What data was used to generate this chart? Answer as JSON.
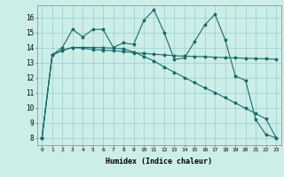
{
  "xlabel": "Humidex (Indice chaleur)",
  "bg_color": "#cceee8",
  "line_color": "#1a6b6b",
  "grid_color": "#99cccc",
  "xlim": [
    -0.5,
    23.5
  ],
  "ylim": [
    7.5,
    16.8
  ],
  "yticks": [
    8,
    9,
    10,
    11,
    12,
    13,
    14,
    15,
    16
  ],
  "xticks": [
    0,
    1,
    2,
    3,
    4,
    5,
    6,
    7,
    8,
    9,
    10,
    11,
    12,
    13,
    14,
    15,
    16,
    17,
    18,
    19,
    20,
    21,
    22,
    23
  ],
  "series1_x": [
    0,
    1,
    2,
    3,
    4,
    5,
    6,
    7,
    8,
    9,
    10,
    11,
    12,
    13,
    14,
    15,
    16,
    17,
    18,
    19,
    20,
    21,
    22,
    23
  ],
  "series1_y": [
    8.0,
    13.5,
    14.0,
    15.2,
    14.7,
    15.2,
    15.2,
    14.0,
    14.3,
    14.2,
    15.8,
    16.5,
    15.0,
    13.2,
    13.3,
    14.4,
    15.5,
    16.2,
    14.5,
    12.1,
    11.8,
    9.2,
    8.2,
    8.0
  ],
  "series2_x": [
    0,
    1,
    2,
    3,
    4,
    5,
    6,
    7,
    8,
    9,
    10,
    11,
    12,
    13,
    14,
    15,
    16,
    17,
    18,
    19,
    20,
    21,
    22,
    23
  ],
  "series2_y": [
    8.0,
    13.5,
    13.8,
    14.0,
    13.95,
    13.85,
    13.82,
    13.78,
    13.72,
    13.65,
    13.6,
    13.55,
    13.5,
    13.45,
    13.42,
    13.4,
    13.38,
    13.35,
    13.32,
    13.3,
    13.28,
    13.26,
    13.24,
    13.22
  ],
  "series3_x": [
    0,
    1,
    2,
    3,
    4,
    5,
    6,
    7,
    8,
    9,
    10,
    11,
    12,
    13,
    14,
    15,
    16,
    17,
    18,
    19,
    20,
    21,
    22,
    23
  ],
  "series3_y": [
    8.0,
    13.5,
    13.8,
    14.0,
    14.0,
    14.0,
    13.98,
    13.95,
    13.9,
    13.7,
    13.4,
    13.1,
    12.7,
    12.35,
    12.0,
    11.65,
    11.3,
    11.0,
    10.65,
    10.3,
    9.95,
    9.6,
    9.25,
    8.0
  ]
}
